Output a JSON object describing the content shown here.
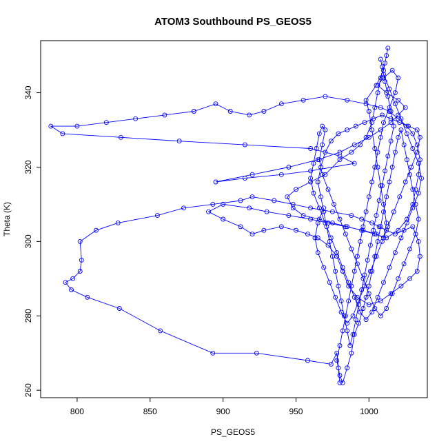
{
  "chart_data": {
    "type": "line",
    "title": "ATOM3 Southbound PS_GEOS5",
    "xlabel": "PS_GEOS5",
    "ylabel": "Theta (K)",
    "xlim": [
      775,
      1040
    ],
    "ylim": [
      258,
      354
    ],
    "x_ticks": [
      800,
      850,
      900,
      950,
      1000
    ],
    "y_ticks": [
      260,
      280,
      300,
      320,
      340
    ],
    "grid": false,
    "legend": "none",
    "markers": "open-circle",
    "color": "#0000ff",
    "points": [
      [
        980,
        262
      ],
      [
        979,
        266
      ],
      [
        978,
        270
      ],
      [
        974,
        267
      ],
      [
        958,
        268
      ],
      [
        923,
        270
      ],
      [
        893,
        270
      ],
      [
        857,
        276
      ],
      [
        829,
        282
      ],
      [
        807,
        285
      ],
      [
        796,
        287
      ],
      [
        792,
        289
      ],
      [
        797,
        290
      ],
      [
        802,
        292
      ],
      [
        803,
        295
      ],
      [
        802,
        300
      ],
      [
        813,
        303
      ],
      [
        828,
        305
      ],
      [
        855,
        307
      ],
      [
        873,
        309
      ],
      [
        893,
        310
      ],
      [
        912,
        311
      ],
      [
        920,
        312
      ],
      [
        935,
        311
      ],
      [
        948,
        310
      ],
      [
        960,
        309
      ],
      [
        975,
        308
      ],
      [
        988,
        307
      ],
      [
        995,
        306
      ],
      [
        1002,
        305
      ],
      [
        1007,
        304
      ],
      [
        1012,
        303
      ],
      [
        1018,
        302
      ],
      [
        1024,
        303
      ],
      [
        1030,
        304
      ],
      [
        1034,
        300
      ],
      [
        1035,
        296
      ],
      [
        1033,
        292
      ],
      [
        1028,
        290
      ],
      [
        1022,
        288
      ],
      [
        1015,
        286
      ],
      [
        1008,
        284
      ],
      [
        1000,
        283
      ],
      [
        992,
        285
      ],
      [
        986,
        288
      ],
      [
        982,
        292
      ],
      [
        978,
        296
      ],
      [
        972,
        299
      ],
      [
        965,
        301
      ],
      [
        958,
        302
      ],
      [
        950,
        303
      ],
      [
        940,
        304
      ],
      [
        928,
        303
      ],
      [
        920,
        302
      ],
      [
        912,
        304
      ],
      [
        900,
        306
      ],
      [
        890,
        308
      ],
      [
        900,
        310
      ],
      [
        918,
        309
      ],
      [
        930,
        308
      ],
      [
        945,
        307
      ],
      [
        960,
        306
      ],
      [
        972,
        305
      ],
      [
        984,
        304
      ],
      [
        996,
        303
      ],
      [
        1005,
        302
      ],
      [
        1010,
        301
      ],
      [
        1012,
        305
      ],
      [
        1010,
        310
      ],
      [
        1008,
        315
      ],
      [
        1006,
        320
      ],
      [
        1004,
        325
      ],
      [
        1002,
        330
      ],
      [
        1000,
        335
      ],
      [
        998,
        338
      ],
      [
        1005,
        342
      ],
      [
        1010,
        346
      ],
      [
        1012,
        350
      ],
      [
        1013,
        352
      ],
      [
        1011,
        348
      ],
      [
        1008,
        344
      ],
      [
        1006,
        340
      ],
      [
        1004,
        336
      ],
      [
        1002,
        332
      ],
      [
        998,
        328
      ],
      [
        994,
        326
      ],
      [
        988,
        324
      ],
      [
        980,
        322
      ],
      [
        970,
        318
      ],
      [
        960,
        316
      ],
      [
        950,
        314
      ],
      [
        944,
        312
      ],
      [
        948,
        309
      ],
      [
        955,
        307
      ],
      [
        966,
        306
      ],
      [
        975,
        305
      ],
      [
        985,
        304
      ],
      [
        995,
        303
      ],
      [
        1004,
        302
      ],
      [
        1012,
        301
      ],
      [
        1020,
        303
      ],
      [
        1026,
        306
      ],
      [
        1030,
        310
      ],
      [
        1032,
        314
      ],
      [
        1034,
        318
      ],
      [
        1035,
        322
      ],
      [
        1033,
        326
      ],
      [
        1030,
        329
      ],
      [
        1026,
        331
      ],
      [
        1020,
        333
      ],
      [
        1014,
        335
      ],
      [
        1008,
        336
      ],
      [
        998,
        337
      ],
      [
        985,
        338
      ],
      [
        970,
        339
      ],
      [
        955,
        338
      ],
      [
        940,
        337
      ],
      [
        928,
        335
      ],
      [
        918,
        334
      ],
      [
        905,
        335
      ],
      [
        895,
        337
      ],
      [
        880,
        335
      ],
      [
        860,
        334
      ],
      [
        840,
        333
      ],
      [
        820,
        332
      ],
      [
        800,
        331
      ],
      [
        782,
        331
      ],
      [
        790,
        329
      ],
      [
        830,
        328
      ],
      [
        870,
        327
      ],
      [
        915,
        326
      ],
      [
        960,
        325
      ],
      [
        980,
        323
      ],
      [
        990,
        321
      ],
      [
        960,
        319
      ],
      [
        940,
        318
      ],
      [
        915,
        317
      ],
      [
        895,
        316
      ],
      [
        920,
        318
      ],
      [
        945,
        320
      ],
      [
        965,
        322
      ],
      [
        980,
        324
      ],
      [
        990,
        326
      ],
      [
        1000,
        328
      ],
      [
        1008,
        330
      ],
      [
        1015,
        332
      ],
      [
        1020,
        334
      ],
      [
        1025,
        336
      ],
      [
        1020,
        338
      ],
      [
        1012,
        340
      ],
      [
        1006,
        342
      ],
      [
        1010,
        344
      ],
      [
        1016,
        346
      ],
      [
        1020,
        344
      ],
      [
        1018,
        340
      ],
      [
        1014,
        336
      ],
      [
        1010,
        332
      ],
      [
        1008,
        328
      ],
      [
        1006,
        324
      ],
      [
        1004,
        320
      ],
      [
        1002,
        316
      ],
      [
        1000,
        312
      ],
      [
        998,
        308
      ],
      [
        996,
        304
      ],
      [
        994,
        300
      ],
      [
        992,
        296
      ],
      [
        990,
        292
      ],
      [
        988,
        288
      ],
      [
        986,
        284
      ],
      [
        984,
        280
      ],
      [
        982,
        276
      ],
      [
        980,
        272
      ],
      [
        978,
        268
      ],
      [
        980,
        264
      ],
      [
        982,
        262
      ],
      [
        985,
        266
      ],
      [
        988,
        270
      ],
      [
        990,
        275
      ],
      [
        993,
        278
      ],
      [
        996,
        282
      ],
      [
        998,
        285
      ],
      [
        1000,
        288
      ],
      [
        1002,
        292
      ],
      [
        1004,
        296
      ],
      [
        1006,
        300
      ],
      [
        1008,
        304
      ],
      [
        1010,
        308
      ],
      [
        1012,
        312
      ],
      [
        1014,
        316
      ],
      [
        1016,
        320
      ],
      [
        1018,
        324
      ],
      [
        1020,
        328
      ],
      [
        1022,
        330
      ],
      [
        1024,
        326
      ],
      [
        1026,
        322
      ],
      [
        1028,
        318
      ],
      [
        1030,
        314
      ],
      [
        1032,
        310
      ],
      [
        1034,
        306
      ],
      [
        1032,
        302
      ],
      [
        1028,
        298
      ],
      [
        1024,
        294
      ],
      [
        1020,
        290
      ],
      [
        1016,
        286
      ],
      [
        1012,
        282
      ],
      [
        1008,
        280
      ],
      [
        1004,
        282
      ],
      [
        1000,
        286
      ],
      [
        996,
        290
      ],
      [
        992,
        294
      ],
      [
        988,
        298
      ],
      [
        984,
        302
      ],
      [
        980,
        306
      ],
      [
        976,
        310
      ],
      [
        972,
        314
      ],
      [
        968,
        318
      ],
      [
        966,
        322
      ],
      [
        968,
        326
      ],
      [
        970,
        330
      ],
      [
        968,
        331
      ],
      [
        966,
        329
      ],
      [
        964,
        325
      ],
      [
        962,
        321
      ],
      [
        960,
        317
      ],
      [
        962,
        313
      ],
      [
        966,
        309
      ],
      [
        970,
        305
      ],
      [
        974,
        301
      ],
      [
        978,
        297
      ],
      [
        982,
        293
      ],
      [
        986,
        289
      ],
      [
        990,
        285
      ],
      [
        994,
        281
      ],
      [
        998,
        279
      ],
      [
        1002,
        281
      ],
      [
        1006,
        285
      ],
      [
        1010,
        289
      ],
      [
        1014,
        293
      ],
      [
        1018,
        297
      ],
      [
        1022,
        301
      ],
      [
        1026,
        305
      ],
      [
        1030,
        309
      ],
      [
        1034,
        313
      ],
      [
        1036,
        317
      ],
      [
        1034,
        321
      ],
      [
        1030,
        325
      ],
      [
        1026,
        329
      ],
      [
        1022,
        333
      ],
      [
        1018,
        337
      ],
      [
        1014,
        341
      ],
      [
        1010,
        345
      ],
      [
        1008,
        349
      ],
      [
        1009,
        347
      ],
      [
        1011,
        343
      ],
      [
        1013,
        339
      ],
      [
        1015,
        335
      ],
      [
        1017,
        331
      ],
      [
        1015,
        327
      ],
      [
        1013,
        323
      ],
      [
        1011,
        319
      ],
      [
        1009,
        315
      ],
      [
        1007,
        311
      ],
      [
        1005,
        307
      ],
      [
        1003,
        303
      ],
      [
        1001,
        299
      ],
      [
        999,
        295
      ],
      [
        997,
        291
      ],
      [
        995,
        287
      ],
      [
        993,
        283
      ],
      [
        991,
        279
      ],
      [
        989,
        275
      ],
      [
        987,
        272
      ],
      [
        985,
        276
      ],
      [
        983,
        280
      ],
      [
        981,
        284
      ],
      [
        979,
        288
      ],
      [
        977,
        292
      ],
      [
        975,
        296
      ],
      [
        973,
        300
      ],
      [
        971,
        304
      ],
      [
        969,
        308
      ],
      [
        967,
        312
      ],
      [
        965,
        316
      ],
      [
        967,
        320
      ],
      [
        970,
        324
      ],
      [
        974,
        327
      ],
      [
        979,
        329
      ],
      [
        985,
        330
      ],
      [
        991,
        331
      ],
      [
        997,
        332
      ],
      [
        1003,
        333
      ],
      [
        1009,
        334
      ],
      [
        1015,
        333
      ],
      [
        1021,
        332
      ],
      [
        1027,
        331
      ],
      [
        1033,
        330
      ],
      [
        1035,
        328
      ],
      [
        1033,
        324
      ],
      [
        1029,
        320
      ],
      [
        1025,
        316
      ],
      [
        1021,
        312
      ],
      [
        1017,
        308
      ],
      [
        1013,
        304
      ],
      [
        1009,
        300
      ],
      [
        1005,
        296
      ],
      [
        1001,
        292
      ],
      [
        997,
        288
      ],
      [
        993,
        284
      ],
      [
        989,
        280
      ],
      [
        985,
        278
      ],
      [
        981,
        281
      ],
      [
        977,
        285
      ],
      [
        973,
        289
      ],
      [
        969,
        293
      ],
      [
        965,
        297
      ],
      [
        963,
        301
      ],
      [
        965,
        305
      ],
      [
        969,
        309
      ]
    ]
  }
}
